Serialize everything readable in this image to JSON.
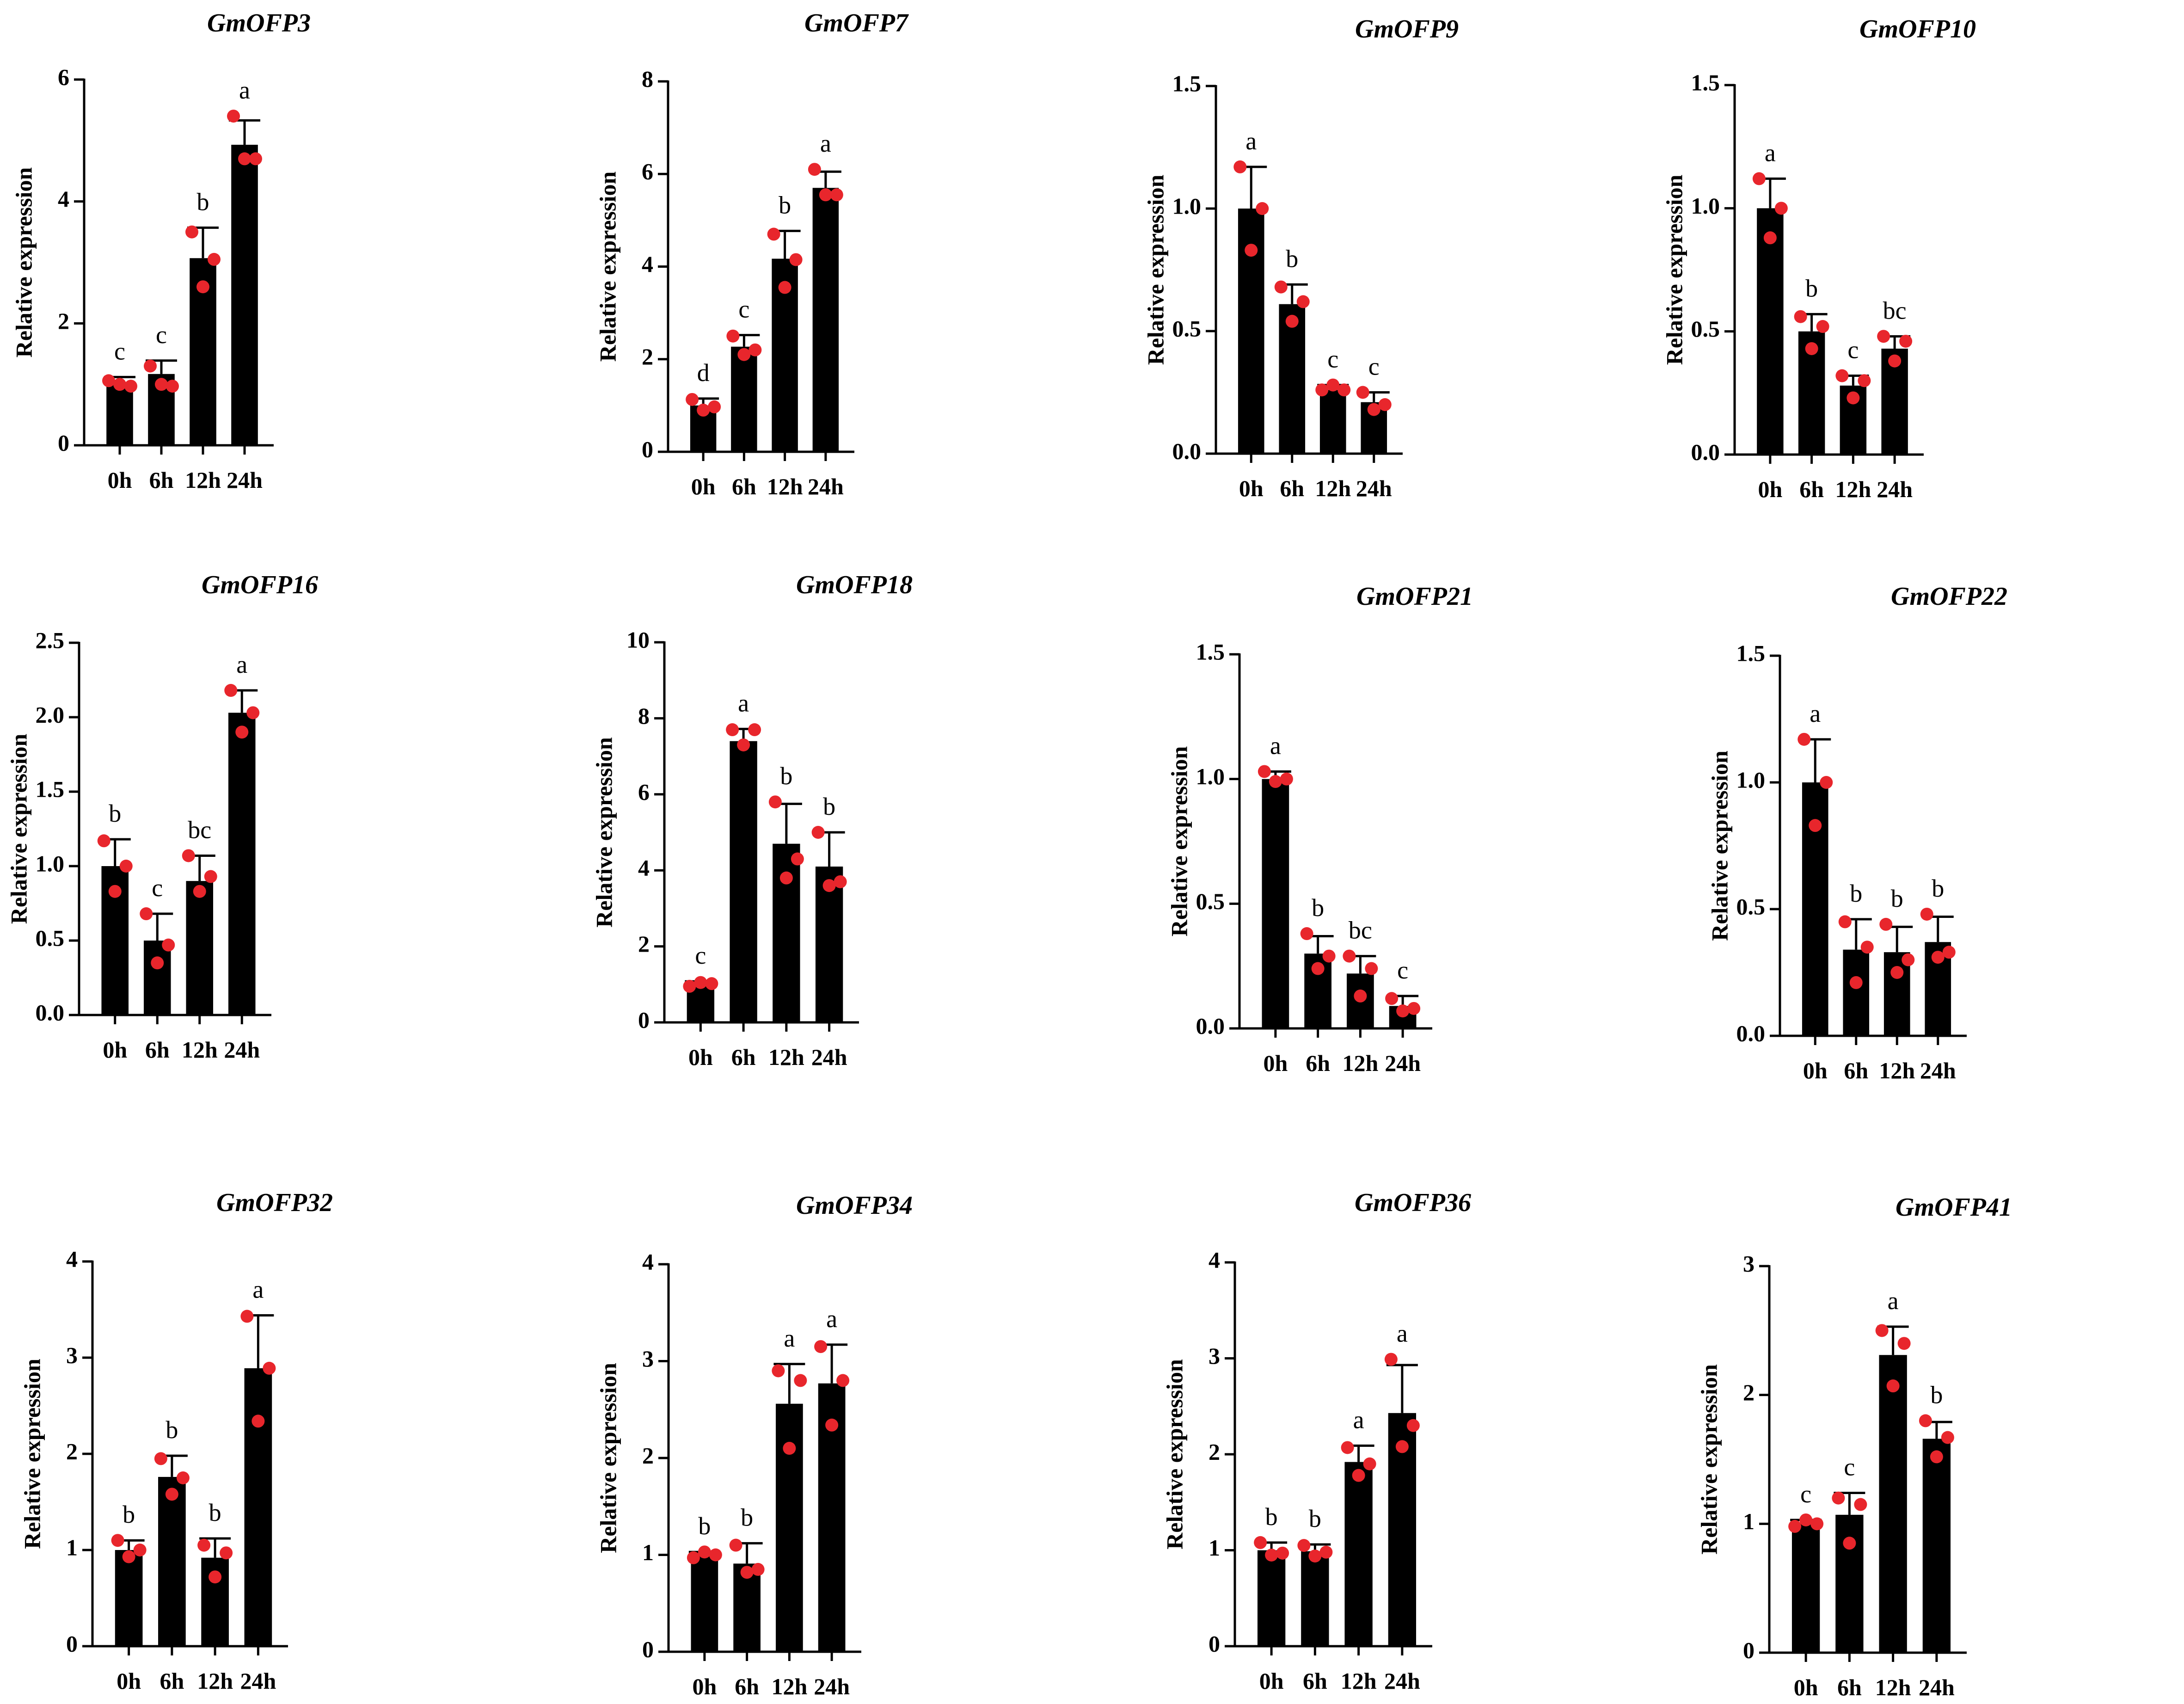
{
  "figure": {
    "bar_color": "#000000",
    "point_color": "#e8262c",
    "axis_color": "#000000"
  },
  "chart_data": [
    {
      "type": "bar",
      "title": "GmOFP3",
      "ylabel": "Relative expression",
      "xlabel": "",
      "categories": [
        "0h",
        "6h",
        "12h",
        "24h"
      ],
      "values": [
        1.0,
        1.17,
        3.07,
        4.93
      ],
      "errors": [
        0.12,
        0.22,
        0.5,
        0.4
      ],
      "points": [
        [
          1.06,
          1.0,
          0.97
        ],
        [
          1.3,
          1.0,
          0.97
        ],
        [
          3.5,
          2.6,
          3.05
        ],
        [
          5.4,
          4.7,
          4.7
        ]
      ],
      "significance": [
        "c",
        "c",
        "b",
        "a"
      ],
      "ylim": [
        0,
        6
      ],
      "yticks": [
        0,
        2,
        4,
        6
      ],
      "ytick_labels": [
        "0",
        "2",
        "4",
        "6"
      ]
    },
    {
      "type": "bar",
      "title": "GmOFP7",
      "ylabel": "Relative expression",
      "xlabel": "",
      "categories": [
        "0h",
        "6h",
        "12h",
        "24h"
      ],
      "values": [
        1.0,
        2.27,
        4.17,
        5.7
      ],
      "errors": [
        0.15,
        0.25,
        0.6,
        0.35
      ],
      "points": [
        [
          1.13,
          0.9,
          0.97
        ],
        [
          2.5,
          2.1,
          2.2
        ],
        [
          4.7,
          3.55,
          4.15
        ],
        [
          6.1,
          5.55,
          5.55
        ]
      ],
      "significance": [
        "d",
        "c",
        "b",
        "a"
      ],
      "ylim": [
        0,
        8
      ],
      "yticks": [
        0,
        2,
        4,
        6,
        8
      ],
      "ytick_labels": [
        "0",
        "2",
        "4",
        "6",
        "8"
      ]
    },
    {
      "type": "bar",
      "title": "GmOFP9",
      "ylabel": "Relative expression",
      "xlabel": "",
      "categories": [
        "0h",
        "6h",
        "12h",
        "24h"
      ],
      "values": [
        1.0,
        0.61,
        0.26,
        0.21
      ],
      "errors": [
        0.17,
        0.08,
        0.02,
        0.04
      ],
      "points": [
        [
          1.17,
          0.83,
          1.0
        ],
        [
          0.68,
          0.54,
          0.62
        ],
        [
          0.26,
          0.28,
          0.26
        ],
        [
          0.25,
          0.18,
          0.2
        ]
      ],
      "significance": [
        "a",
        "b",
        "c",
        "c"
      ],
      "ylim": [
        0,
        1.5
      ],
      "yticks": [
        0,
        0.5,
        1.0,
        1.5
      ],
      "ytick_labels": [
        "0.0",
        "0.5",
        "1.0",
        "1.5"
      ]
    },
    {
      "type": "bar",
      "title": "GmOFP10",
      "ylabel": "Relative expression",
      "xlabel": "",
      "categories": [
        "0h",
        "6h",
        "12h",
        "24h"
      ],
      "values": [
        1.0,
        0.5,
        0.28,
        0.43
      ],
      "errors": [
        0.12,
        0.07,
        0.04,
        0.05
      ],
      "points": [
        [
          1.12,
          0.88,
          1.0
        ],
        [
          0.56,
          0.43,
          0.52
        ],
        [
          0.32,
          0.23,
          0.3
        ],
        [
          0.48,
          0.38,
          0.46
        ]
      ],
      "significance": [
        "a",
        "b",
        "c",
        "bc"
      ],
      "ylim": [
        0,
        1.5
      ],
      "yticks": [
        0,
        0.5,
        1.0,
        1.5
      ],
      "ytick_labels": [
        "0.0",
        "0.5",
        "1.0",
        "1.5"
      ]
    },
    {
      "type": "bar",
      "title": "GmOFP16",
      "ylabel": "Relative expression",
      "xlabel": "",
      "categories": [
        "0h",
        "6h",
        "12h",
        "24h"
      ],
      "values": [
        1.0,
        0.5,
        0.9,
        2.03
      ],
      "errors": [
        0.18,
        0.18,
        0.17,
        0.15
      ],
      "points": [
        [
          1.17,
          0.83,
          1.0
        ],
        [
          0.68,
          0.35,
          0.47
        ],
        [
          1.07,
          0.83,
          0.93
        ],
        [
          2.18,
          1.9,
          2.03
        ]
      ],
      "significance": [
        "b",
        "c",
        "bc",
        "a"
      ],
      "ylim": [
        0,
        2.5
      ],
      "yticks": [
        0,
        0.5,
        1.0,
        1.5,
        2.0,
        2.5
      ],
      "ytick_labels": [
        "0.0",
        "0.5",
        "1.0",
        "1.5",
        "2.0",
        "2.5"
      ]
    },
    {
      "type": "bar",
      "title": "GmOFP18",
      "ylabel": "Relative expression",
      "xlabel": "",
      "categories": [
        "0h",
        "6h",
        "12h",
        "24h"
      ],
      "values": [
        1.0,
        7.4,
        4.7,
        4.1
      ],
      "errors": [
        0.08,
        0.32,
        1.05,
        0.9
      ],
      "points": [
        [
          0.95,
          1.05,
          1.02
        ],
        [
          7.7,
          7.3,
          7.7
        ],
        [
          5.8,
          3.8,
          4.3
        ],
        [
          5.0,
          3.6,
          3.7
        ]
      ],
      "significance": [
        "c",
        "a",
        "b",
        "b"
      ],
      "ylim": [
        0,
        10
      ],
      "yticks": [
        0,
        2,
        4,
        6,
        8,
        10
      ],
      "ytick_labels": [
        "0",
        "2",
        "4",
        "6",
        "8",
        "10"
      ]
    },
    {
      "type": "bar",
      "title": "GmOFP21",
      "ylabel": "Relative expression",
      "xlabel": "",
      "categories": [
        "0h",
        "6h",
        "12h",
        "24h"
      ],
      "values": [
        1.0,
        0.3,
        0.22,
        0.09
      ],
      "errors": [
        0.03,
        0.07,
        0.07,
        0.04
      ],
      "points": [
        [
          1.03,
          0.99,
          1.0
        ],
        [
          0.38,
          0.24,
          0.29
        ],
        [
          0.29,
          0.13,
          0.24
        ],
        [
          0.12,
          0.07,
          0.08
        ]
      ],
      "significance": [
        "a",
        "b",
        "bc",
        "c"
      ],
      "ylim": [
        0,
        1.5
      ],
      "yticks": [
        0,
        0.5,
        1.0,
        1.5
      ],
      "ytick_labels": [
        "0.0",
        "0.5",
        "1.0",
        "1.5"
      ]
    },
    {
      "type": "bar",
      "title": "GmOFP22",
      "ylabel": "Relative expression",
      "xlabel": "",
      "categories": [
        "0h",
        "6h",
        "12h",
        "24h"
      ],
      "values": [
        1.0,
        0.34,
        0.33,
        0.37
      ],
      "errors": [
        0.17,
        0.12,
        0.1,
        0.1
      ],
      "points": [
        [
          1.17,
          0.83,
          1.0
        ],
        [
          0.45,
          0.21,
          0.35
        ],
        [
          0.44,
          0.25,
          0.3
        ],
        [
          0.48,
          0.31,
          0.33
        ]
      ],
      "significance": [
        "a",
        "b",
        "b",
        "b"
      ],
      "ylim": [
        0,
        1.5
      ],
      "yticks": [
        0,
        0.5,
        1.0,
        1.5
      ],
      "ytick_labels": [
        "0.0",
        "0.5",
        "1.0",
        "1.5"
      ]
    },
    {
      "type": "bar",
      "title": "GmOFP32",
      "ylabel": "Relative expression",
      "xlabel": "",
      "categories": [
        "0h",
        "6h",
        "12h",
        "24h"
      ],
      "values": [
        1.0,
        1.76,
        0.92,
        2.89
      ],
      "errors": [
        0.1,
        0.22,
        0.2,
        0.55
      ],
      "points": [
        [
          1.1,
          0.93,
          1.0
        ],
        [
          1.95,
          1.58,
          1.75
        ],
        [
          1.05,
          0.72,
          0.97
        ],
        [
          3.43,
          2.34,
          2.89
        ]
      ],
      "significance": [
        "b",
        "b",
        "b",
        "a"
      ],
      "ylim": [
        0,
        4
      ],
      "yticks": [
        0,
        1,
        2,
        3,
        4
      ],
      "ytick_labels": [
        "0",
        "1",
        "2",
        "3",
        "4"
      ]
    },
    {
      "type": "bar",
      "title": "GmOFP34",
      "ylabel": "Relative expression",
      "xlabel": "",
      "categories": [
        "0h",
        "6h",
        "12h",
        "24h"
      ],
      "values": [
        1.0,
        0.91,
        2.56,
        2.77
      ],
      "errors": [
        0.03,
        0.21,
        0.41,
        0.4
      ],
      "points": [
        [
          0.97,
          1.03,
          1.0
        ],
        [
          1.1,
          0.82,
          0.85
        ],
        [
          2.9,
          2.1,
          2.8
        ],
        [
          3.15,
          2.34,
          2.8
        ]
      ],
      "significance": [
        "b",
        "b",
        "a",
        "a"
      ],
      "ylim": [
        0,
        4
      ],
      "yticks": [
        0,
        1,
        2,
        3,
        4
      ],
      "ytick_labels": [
        "0",
        "1",
        "2",
        "3",
        "4"
      ]
    },
    {
      "type": "bar",
      "title": "GmOFP36",
      "ylabel": "Relative expression",
      "xlabel": "",
      "categories": [
        "0h",
        "6h",
        "12h",
        "24h"
      ],
      "values": [
        1.0,
        0.99,
        1.92,
        2.43
      ],
      "errors": [
        0.08,
        0.07,
        0.17,
        0.5
      ],
      "points": [
        [
          1.08,
          0.95,
          0.97
        ],
        [
          1.05,
          0.94,
          0.98
        ],
        [
          2.07,
          1.78,
          1.9
        ],
        [
          2.99,
          2.08,
          2.3
        ]
      ],
      "significance": [
        "b",
        "b",
        "a",
        "a"
      ],
      "ylim": [
        0,
        4
      ],
      "yticks": [
        0,
        1,
        2,
        3,
        4
      ],
      "ytick_labels": [
        "0",
        "1",
        "2",
        "3",
        "4"
      ]
    },
    {
      "type": "bar",
      "title": "GmOFP41",
      "ylabel": "Relative expression",
      "xlabel": "",
      "categories": [
        "0h",
        "6h",
        "12h",
        "24h"
      ],
      "values": [
        1.0,
        1.07,
        2.31,
        1.66
      ],
      "errors": [
        0.03,
        0.17,
        0.22,
        0.13
      ],
      "points": [
        [
          0.98,
          1.03,
          1.0
        ],
        [
          1.2,
          0.85,
          1.15
        ],
        [
          2.5,
          2.07,
          2.4
        ],
        [
          1.8,
          1.52,
          1.67
        ]
      ],
      "significance": [
        "c",
        "c",
        "a",
        "b"
      ],
      "ylim": [
        0,
        3
      ],
      "yticks": [
        0,
        1,
        2,
        3
      ],
      "ytick_labels": [
        "0",
        "1",
        "2",
        "3"
      ]
    }
  ]
}
